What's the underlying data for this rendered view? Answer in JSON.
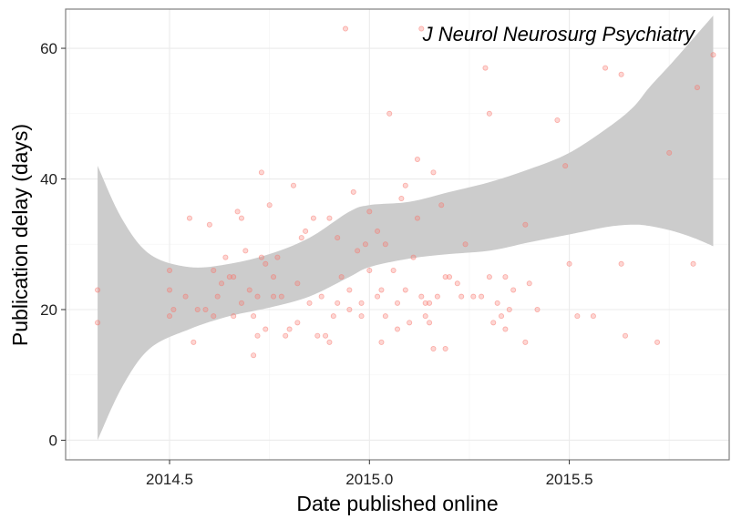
{
  "chart_data": {
    "type": "scatter",
    "annotation": "J Neurol Neurosurg Psychiatry",
    "xlabel": "Date published online",
    "ylabel": "Publication delay (days)",
    "xlim": [
      2014.24,
      2015.9
    ],
    "ylim": [
      -3,
      66
    ],
    "xticks": [
      2014.5,
      2015.0,
      2015.5
    ],
    "xtick_labels": [
      "2014.5",
      "2015.0",
      "2015.5"
    ],
    "yticks": [
      0,
      20,
      40,
      60
    ],
    "ytick_labels": [
      "0",
      "20",
      "40",
      "60"
    ],
    "grid": true,
    "colors": {
      "points": "#f8766d",
      "band": "#cccccc",
      "grid": "#ebebeb",
      "border": "#7f7f7f"
    },
    "points": [
      {
        "x": 2014.32,
        "y": 23
      },
      {
        "x": 2014.32,
        "y": 18
      },
      {
        "x": 2014.5,
        "y": 26
      },
      {
        "x": 2014.5,
        "y": 23
      },
      {
        "x": 2014.5,
        "y": 19
      },
      {
        "x": 2014.51,
        "y": 20
      },
      {
        "x": 2014.54,
        "y": 22
      },
      {
        "x": 2014.55,
        "y": 34
      },
      {
        "x": 2014.56,
        "y": 15
      },
      {
        "x": 2014.57,
        "y": 20
      },
      {
        "x": 2014.59,
        "y": 20
      },
      {
        "x": 2014.6,
        "y": 33
      },
      {
        "x": 2014.61,
        "y": 26
      },
      {
        "x": 2014.61,
        "y": 19
      },
      {
        "x": 2014.62,
        "y": 22
      },
      {
        "x": 2014.63,
        "y": 24
      },
      {
        "x": 2014.64,
        "y": 28
      },
      {
        "x": 2014.65,
        "y": 25
      },
      {
        "x": 2014.66,
        "y": 19
      },
      {
        "x": 2014.66,
        "y": 25
      },
      {
        "x": 2014.67,
        "y": 35
      },
      {
        "x": 2014.68,
        "y": 21
      },
      {
        "x": 2014.68,
        "y": 34
      },
      {
        "x": 2014.69,
        "y": 29
      },
      {
        "x": 2014.7,
        "y": 23
      },
      {
        "x": 2014.71,
        "y": 19
      },
      {
        "x": 2014.71,
        "y": 13
      },
      {
        "x": 2014.72,
        "y": 16
      },
      {
        "x": 2014.72,
        "y": 22
      },
      {
        "x": 2014.73,
        "y": 28
      },
      {
        "x": 2014.73,
        "y": 41
      },
      {
        "x": 2014.74,
        "y": 27
      },
      {
        "x": 2014.74,
        "y": 17
      },
      {
        "x": 2014.75,
        "y": 36
      },
      {
        "x": 2014.76,
        "y": 22
      },
      {
        "x": 2014.76,
        "y": 25
      },
      {
        "x": 2014.77,
        "y": 28
      },
      {
        "x": 2014.78,
        "y": 22
      },
      {
        "x": 2014.79,
        "y": 16
      },
      {
        "x": 2014.8,
        "y": 17
      },
      {
        "x": 2014.81,
        "y": 39
      },
      {
        "x": 2014.82,
        "y": 24
      },
      {
        "x": 2014.82,
        "y": 18
      },
      {
        "x": 2014.83,
        "y": 31
      },
      {
        "x": 2014.84,
        "y": 32
      },
      {
        "x": 2014.85,
        "y": 21
      },
      {
        "x": 2014.86,
        "y": 34
      },
      {
        "x": 2014.87,
        "y": 16
      },
      {
        "x": 2014.88,
        "y": 22
      },
      {
        "x": 2014.89,
        "y": 16
      },
      {
        "x": 2014.9,
        "y": 34
      },
      {
        "x": 2014.9,
        "y": 15
      },
      {
        "x": 2014.91,
        "y": 19
      },
      {
        "x": 2014.92,
        "y": 21
      },
      {
        "x": 2014.92,
        "y": 31
      },
      {
        "x": 2014.93,
        "y": 25
      },
      {
        "x": 2014.94,
        "y": 63
      },
      {
        "x": 2014.95,
        "y": 20
      },
      {
        "x": 2014.95,
        "y": 23
      },
      {
        "x": 2014.96,
        "y": 38
      },
      {
        "x": 2014.97,
        "y": 29
      },
      {
        "x": 2014.98,
        "y": 21
      },
      {
        "x": 2014.98,
        "y": 19
      },
      {
        "x": 2014.99,
        "y": 30
      },
      {
        "x": 2015.0,
        "y": 35
      },
      {
        "x": 2015.0,
        "y": 26
      },
      {
        "x": 2015.02,
        "y": 32
      },
      {
        "x": 2015.02,
        "y": 22
      },
      {
        "x": 2015.03,
        "y": 15
      },
      {
        "x": 2015.03,
        "y": 23
      },
      {
        "x": 2015.04,
        "y": 19
      },
      {
        "x": 2015.04,
        "y": 30
      },
      {
        "x": 2015.05,
        "y": 50
      },
      {
        "x": 2015.06,
        "y": 26
      },
      {
        "x": 2015.07,
        "y": 21
      },
      {
        "x": 2015.07,
        "y": 17
      },
      {
        "x": 2015.08,
        "y": 37
      },
      {
        "x": 2015.09,
        "y": 39
      },
      {
        "x": 2015.09,
        "y": 23
      },
      {
        "x": 2015.1,
        "y": 18
      },
      {
        "x": 2015.11,
        "y": 28
      },
      {
        "x": 2015.12,
        "y": 43
      },
      {
        "x": 2015.12,
        "y": 34
      },
      {
        "x": 2015.13,
        "y": 63
      },
      {
        "x": 2015.13,
        "y": 22
      },
      {
        "x": 2015.14,
        "y": 21
      },
      {
        "x": 2015.14,
        "y": 19
      },
      {
        "x": 2015.15,
        "y": 18
      },
      {
        "x": 2015.15,
        "y": 21
      },
      {
        "x": 2015.16,
        "y": 41
      },
      {
        "x": 2015.16,
        "y": 14
      },
      {
        "x": 2015.17,
        "y": 22
      },
      {
        "x": 2015.18,
        "y": 36
      },
      {
        "x": 2015.19,
        "y": 14
      },
      {
        "x": 2015.19,
        "y": 25
      },
      {
        "x": 2015.2,
        "y": 25
      },
      {
        "x": 2015.22,
        "y": 24
      },
      {
        "x": 2015.23,
        "y": 22
      },
      {
        "x": 2015.24,
        "y": 30
      },
      {
        "x": 2015.26,
        "y": 22
      },
      {
        "x": 2015.28,
        "y": 22
      },
      {
        "x": 2015.29,
        "y": 57
      },
      {
        "x": 2015.3,
        "y": 50
      },
      {
        "x": 2015.3,
        "y": 25
      },
      {
        "x": 2015.31,
        "y": 18
      },
      {
        "x": 2015.32,
        "y": 21
      },
      {
        "x": 2015.33,
        "y": 19
      },
      {
        "x": 2015.34,
        "y": 25
      },
      {
        "x": 2015.34,
        "y": 17
      },
      {
        "x": 2015.35,
        "y": 20
      },
      {
        "x": 2015.36,
        "y": 23
      },
      {
        "x": 2015.39,
        "y": 33
      },
      {
        "x": 2015.39,
        "y": 15
      },
      {
        "x": 2015.4,
        "y": 24
      },
      {
        "x": 2015.42,
        "y": 20
      },
      {
        "x": 2015.47,
        "y": 49
      },
      {
        "x": 2015.49,
        "y": 42
      },
      {
        "x": 2015.5,
        "y": 27
      },
      {
        "x": 2015.52,
        "y": 19
      },
      {
        "x": 2015.56,
        "y": 19
      },
      {
        "x": 2015.59,
        "y": 57
      },
      {
        "x": 2015.63,
        "y": 56
      },
      {
        "x": 2015.63,
        "y": 27
      },
      {
        "x": 2015.64,
        "y": 16
      },
      {
        "x": 2015.72,
        "y": 15
      },
      {
        "x": 2015.75,
        "y": 44
      },
      {
        "x": 2015.81,
        "y": 27
      },
      {
        "x": 2015.82,
        "y": 54
      },
      {
        "x": 2015.86,
        "y": 59
      }
    ],
    "smooth_band": [
      {
        "x": 2014.32,
        "lower": 0,
        "upper": 42
      },
      {
        "x": 2014.38,
        "lower": 8,
        "upper": 34
      },
      {
        "x": 2014.45,
        "lower": 14,
        "upper": 28.5
      },
      {
        "x": 2014.55,
        "lower": 17,
        "upper": 26.5
      },
      {
        "x": 2014.65,
        "lower": 19,
        "upper": 27
      },
      {
        "x": 2014.75,
        "lower": 20.3,
        "upper": 28.5
      },
      {
        "x": 2014.85,
        "lower": 22,
        "upper": 31
      },
      {
        "x": 2014.95,
        "lower": 25,
        "upper": 35
      },
      {
        "x": 2015.0,
        "lower": 26.5,
        "upper": 36
      },
      {
        "x": 2015.1,
        "lower": 27.8,
        "upper": 36.5
      },
      {
        "x": 2015.2,
        "lower": 28.5,
        "upper": 38
      },
      {
        "x": 2015.3,
        "lower": 29,
        "upper": 39.5
      },
      {
        "x": 2015.4,
        "lower": 30.3,
        "upper": 41.5
      },
      {
        "x": 2015.5,
        "lower": 31.5,
        "upper": 44
      },
      {
        "x": 2015.6,
        "lower": 32.7,
        "upper": 48
      },
      {
        "x": 2015.66,
        "lower": 33,
        "upper": 51
      },
      {
        "x": 2015.7,
        "lower": 32.8,
        "upper": 54
      },
      {
        "x": 2015.76,
        "lower": 32,
        "upper": 58
      },
      {
        "x": 2015.81,
        "lower": 31,
        "upper": 61.5
      },
      {
        "x": 2015.86,
        "lower": 29.7,
        "upper": 65
      }
    ]
  }
}
